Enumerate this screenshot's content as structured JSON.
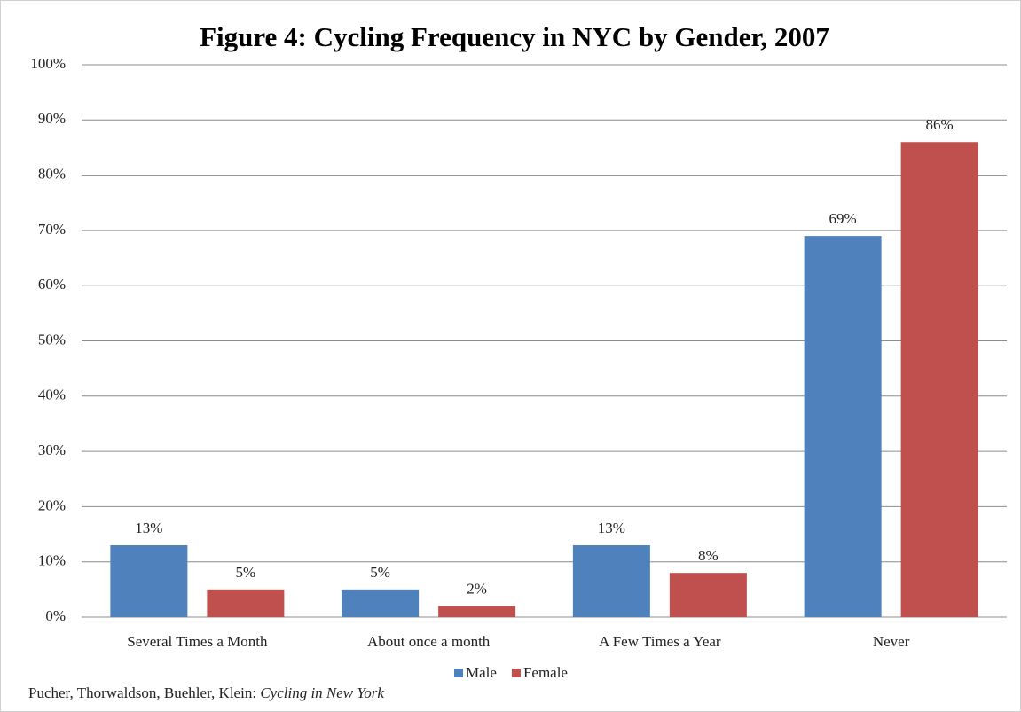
{
  "chart_data": {
    "type": "bar",
    "title": "Figure 4: Cycling Frequency in NYC by Gender, 2007",
    "categories": [
      "Several Times a Month",
      "About once a month",
      "A Few Times a Year",
      "Never"
    ],
    "series": [
      {
        "name": "Male",
        "color": "#4f81bd",
        "values": [
          13,
          5,
          13,
          69
        ],
        "value_labels": [
          "13%",
          "5%",
          "13%",
          "69%"
        ]
      },
      {
        "name": "Female",
        "color": "#c0504d",
        "values": [
          5,
          2,
          8,
          86
        ],
        "value_labels": [
          "5%",
          "2%",
          "8%",
          "86%"
        ]
      }
    ],
    "ylim": [
      0,
      100
    ],
    "yticks": [
      {
        "value": 0,
        "label": "0%"
      },
      {
        "value": 10,
        "label": "10%"
      },
      {
        "value": 20,
        "label": "20%"
      },
      {
        "value": 30,
        "label": "30%"
      },
      {
        "value": 40,
        "label": "40%"
      },
      {
        "value": 50,
        "label": "50%"
      },
      {
        "value": 60,
        "label": "60%"
      },
      {
        "value": 70,
        "label": "70%"
      },
      {
        "value": 80,
        "label": "80%"
      },
      {
        "value": 90,
        "label": "90%"
      },
      {
        "value": 100,
        "label": "100%"
      }
    ],
    "grid": true,
    "legend": "bottom",
    "source": "Pucher, Thorwaldson, Buehler, Klein: ",
    "source_title": "Cycling in New York"
  }
}
